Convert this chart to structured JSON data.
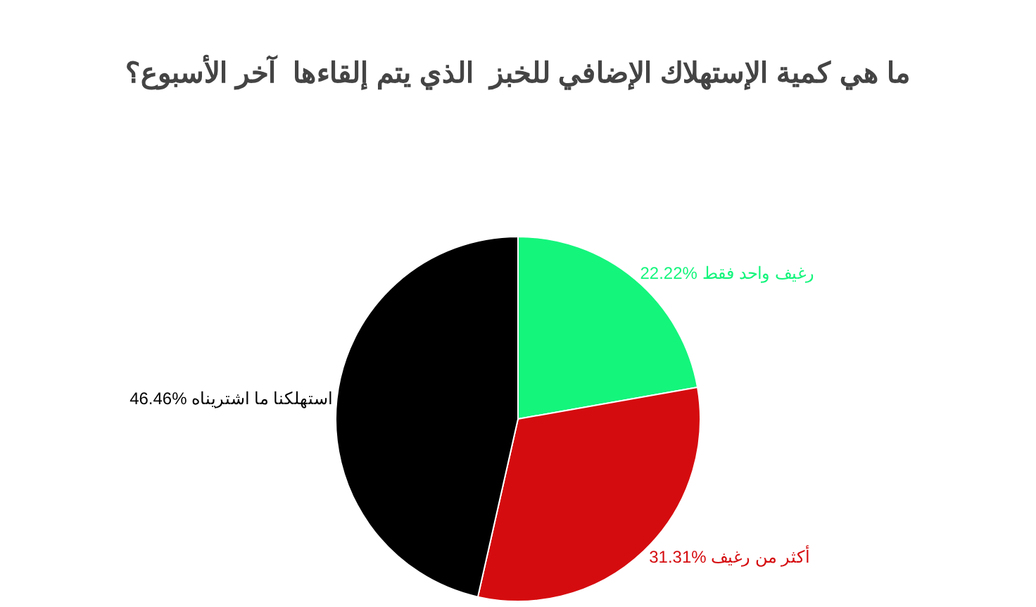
{
  "chart_data": {
    "type": "pie",
    "title": "ما هي كمية الإستهلاك الإضافي للخبز  الذي يتم إلقاءها  آخر الأسبوع؟",
    "categories": [
      "رغيف واحد فقط",
      "أكثر من رغيف",
      "استهلكنا ما اشتريناه"
    ],
    "values": [
      22.22,
      31.31,
      46.46
    ],
    "value_labels": [
      "22.22%",
      "31.31%",
      "46.46%"
    ],
    "colors": [
      "#14f57c",
      "#d50c0f",
      "#000000"
    ],
    "legend": false
  }
}
